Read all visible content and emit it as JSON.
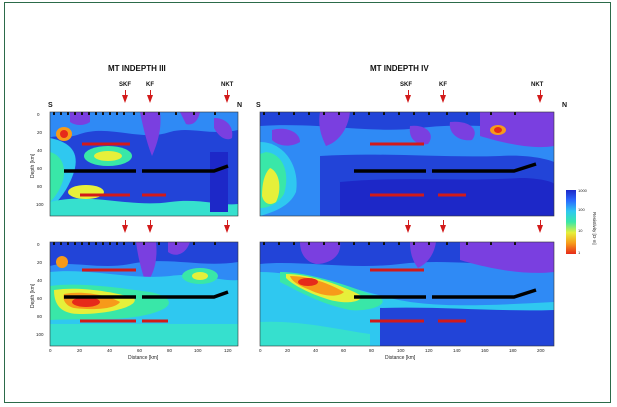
{
  "titles": {
    "left": "MT    INDEPTH III",
    "right": "MT    INDEPTH IV"
  },
  "faults": {
    "left": [
      "SKF",
      "KF",
      "NKT"
    ],
    "right": [
      "SKF",
      "KF",
      "NKT"
    ]
  },
  "edges": {
    "south": "S",
    "north": "N"
  },
  "axes": {
    "xlabel": "Distance [km]",
    "ylabel": "Depth [km]",
    "left_x_ticks": [
      "0",
      "20",
      "40",
      "60",
      "80",
      "100",
      "120"
    ],
    "right_x_ticks": [
      "0",
      "20",
      "40",
      "60",
      "80",
      "100",
      "120",
      "140",
      "160",
      "180",
      "200"
    ],
    "y_ticks": [
      "0",
      "20",
      "40",
      "60",
      "80",
      "100"
    ]
  },
  "colorbar": {
    "title": "Resistivity [Ω·m]",
    "labels": [
      "1000",
      "100",
      "10",
      "1"
    ]
  },
  "colors": {
    "frame": "#2c6b4a",
    "marker": "#d21a1a",
    "interface": "#000000"
  }
}
